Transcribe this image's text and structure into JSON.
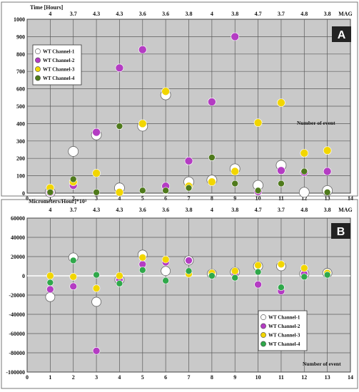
{
  "figure": {
    "panels": [
      "A",
      "B"
    ],
    "mag_label": "MAG",
    "mag_values": [
      "4",
      "3.7",
      "4.3",
      "4.3",
      "3.6",
      "3.6",
      "3.8",
      "4",
      "3.8",
      "4.7",
      "3.7",
      "4.8",
      "3.8"
    ]
  },
  "colors": {
    "plot_bg": "#c9c9c9",
    "gridline": "#5a5a5a",
    "zero_line": "#ffffff",
    "label_box": "#222222",
    "ch1": "#ffffff",
    "ch2": "#b43cc3",
    "ch3": "#f2d600",
    "ch4_a": "#4f7a1c",
    "ch4_b": "#2fa84a"
  },
  "chart_data": [
    {
      "type": "scatter",
      "panel_label": "A",
      "title": "",
      "ylabel": "Time [Hours]",
      "xlabel": "",
      "annotation": "Number of event",
      "xlim": [
        0,
        14
      ],
      "ylim": [
        0,
        1000
      ],
      "xticks": [
        "0",
        "1",
        "2",
        "3",
        "4",
        "5",
        "6",
        "7",
        "8",
        "9",
        "10",
        "11",
        "12",
        "13",
        "14"
      ],
      "yticks": [
        "0",
        "100",
        "200",
        "300",
        "400",
        "500",
        "600",
        "700",
        "800",
        "900",
        "1000"
      ],
      "x": [
        1,
        2,
        3,
        4,
        5,
        6,
        7,
        8,
        9,
        10,
        11,
        12,
        13
      ],
      "legend_position": "top-left",
      "grid": true,
      "series": [
        {
          "name": "WT Channel-1",
          "color": "#ffffff",
          "values": [
            5,
            240,
            335,
            30,
            385,
            565,
            65,
            75,
            140,
            45,
            160,
            5,
            15
          ]
        },
        {
          "name": "WT Channel-2",
          "color": "#b43cc3",
          "values": [
            5,
            45,
            350,
            720,
            825,
            40,
            185,
            525,
            900,
            10,
            130,
            120,
            125
          ]
        },
        {
          "name": "WT Channel-3",
          "color": "#f2d600",
          "values": [
            30,
            65,
            115,
            5,
            400,
            585,
            40,
            65,
            125,
            405,
            520,
            230,
            245
          ]
        },
        {
          "name": "WT Channel-4",
          "color": "#4f7a1c",
          "values": [
            5,
            80,
            5,
            385,
            15,
            15,
            30,
            205,
            55,
            15,
            55,
            125,
            5
          ]
        }
      ]
    },
    {
      "type": "scatter",
      "panel_label": "B",
      "title": "",
      "ylabel": "Micrometers/Hour]*10³",
      "xlabel": "",
      "annotation": "Number of event",
      "xlim": [
        0,
        14
      ],
      "ylim": [
        -100000,
        60000
      ],
      "xticks": [
        "0",
        "1",
        "2",
        "3",
        "4",
        "5",
        "6",
        "7",
        "8",
        "9",
        "10",
        "11",
        "12",
        "13",
        "14"
      ],
      "yticks": [
        "60000",
        "40000",
        "20000",
        "0",
        "-20000",
        "-40000",
        "-60000",
        "-80000",
        "-100000"
      ],
      "x": [
        1,
        2,
        3,
        4,
        5,
        6,
        7,
        8,
        9,
        10,
        11,
        12,
        13
      ],
      "legend_position": "bottom-right",
      "grid": true,
      "series": [
        {
          "name": "WT Channel-1",
          "color": "#ffffff",
          "values": [
            -22000,
            19000,
            -27000,
            -4000,
            22000,
            5000,
            16000,
            2000,
            4000,
            10000,
            10000,
            2000,
            3000
          ]
        },
        {
          "name": "WT Channel-2",
          "color": "#b43cc3",
          "values": [
            -14000,
            -11000,
            -78000,
            -4000,
            12000,
            14000,
            16000,
            2000,
            3000,
            -9000,
            -16000,
            2000,
            3000
          ]
        },
        {
          "name": "WT Channel-3",
          "color": "#f2d600",
          "values": [
            0,
            -1000,
            -13000,
            0,
            19000,
            17000,
            2000,
            3000,
            5000,
            11000,
            12000,
            8000,
            3000
          ]
        },
        {
          "name": "WT Channel-4",
          "color": "#2fa84a",
          "values": [
            -7000,
            16000,
            1000,
            -8000,
            6000,
            -5000,
            5000,
            0,
            -2000,
            4000,
            -12000,
            -1000,
            1000
          ]
        }
      ]
    }
  ]
}
